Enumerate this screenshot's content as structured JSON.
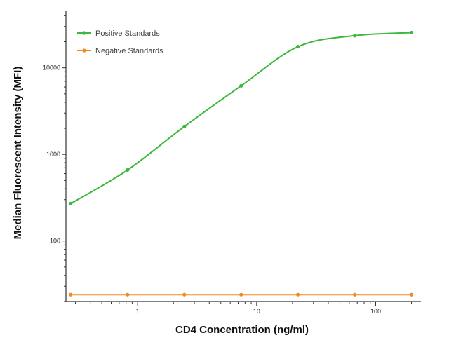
{
  "chart_data": {
    "type": "line",
    "xlabel": "CD4 Concentration (ng/ml)",
    "ylabel": "Median  Fluorescent Intensity  (MFI)",
    "x_scale": "log",
    "y_scale": "log",
    "xlim": [
      0.25,
      240
    ],
    "ylim": [
      20,
      45000
    ],
    "x_ticks": [
      {
        "value": 1,
        "label": "1"
      },
      {
        "value": 10,
        "label": "10"
      },
      {
        "value": 100,
        "label": "100"
      }
    ],
    "y_ticks": [
      {
        "value": 100,
        "label": "100"
      },
      {
        "value": 1000,
        "label": "1000"
      },
      {
        "value": 10000,
        "label": "10000"
      }
    ],
    "grid": false,
    "legend_position": "top-left",
    "series": [
      {
        "name": "Positive Standards",
        "color": "#3cb83c",
        "x": [
          0.274,
          0.823,
          2.47,
          7.41,
          22.2,
          66.7,
          200
        ],
        "y": [
          270,
          660,
          2100,
          6200,
          17500,
          23500,
          25500
        ]
      },
      {
        "name": "Negative Standards",
        "color": "#f08a24",
        "x": [
          0.274,
          0.823,
          2.47,
          7.41,
          22.2,
          66.7,
          200
        ],
        "y": [
          24,
          24,
          24,
          24,
          24,
          24,
          24
        ]
      }
    ]
  }
}
